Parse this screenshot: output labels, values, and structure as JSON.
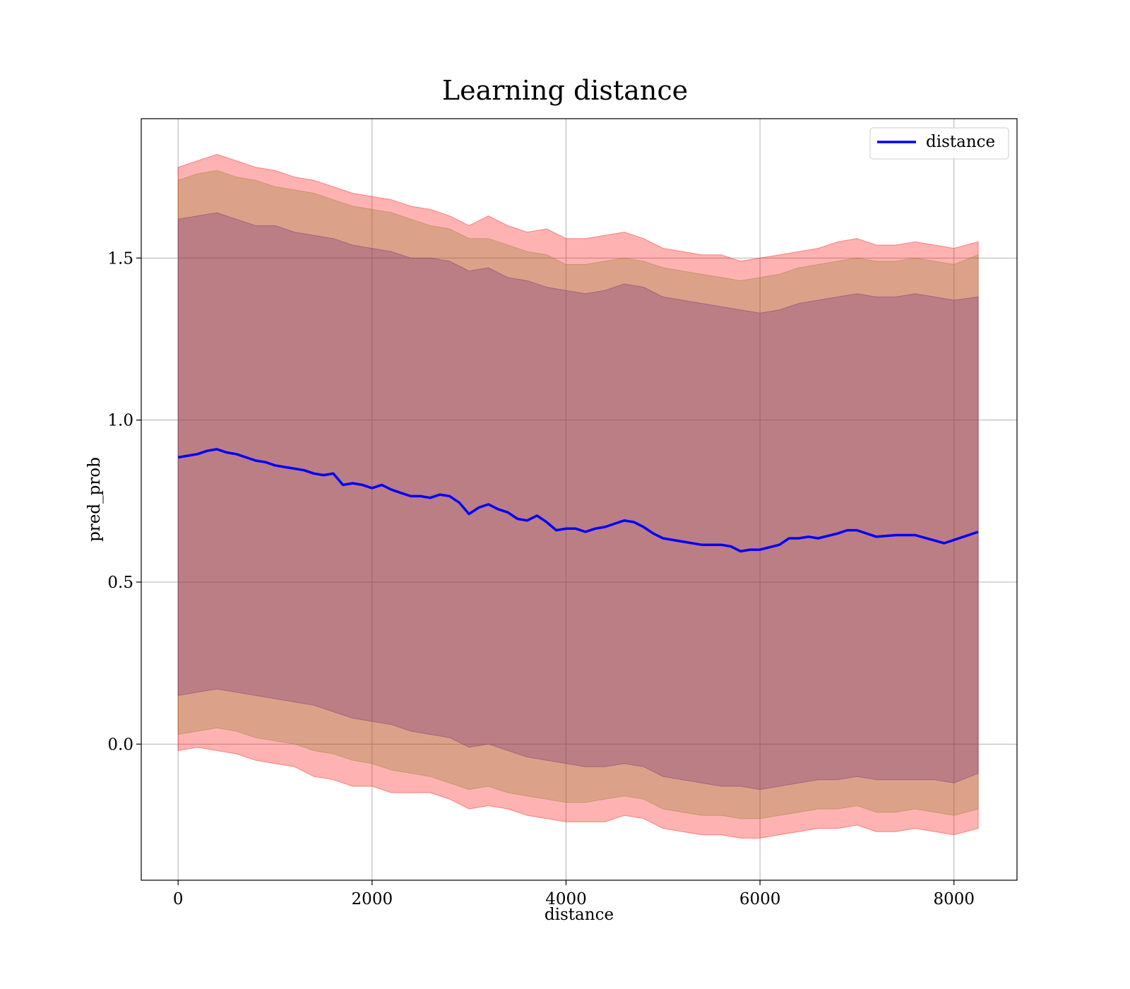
{
  "chart_data": {
    "type": "line",
    "title": "Learning distance",
    "xlabel": "distance",
    "ylabel": "pred_prob",
    "xlim": [
      -380,
      8650
    ],
    "ylim": [
      -0.42,
      1.93
    ],
    "xticks": [
      0,
      2000,
      4000,
      6000,
      8000
    ],
    "xtick_labels": [
      "0",
      "2000",
      "4000",
      "6000",
      "8000"
    ],
    "yticks": [
      0.0,
      0.5,
      1.0,
      1.5
    ],
    "ytick_labels": [
      "0.0",
      "0.5",
      "1.0",
      "1.5"
    ],
    "grid": true,
    "legend": {
      "placement": "top-right",
      "entries": [
        "distance"
      ]
    },
    "colors": {
      "line": "#0000ff",
      "outer_band": "#ff0000",
      "middle_band": "#8a7d2a",
      "inner_band": "#6f2a7a",
      "grid": "#b0b0b0"
    },
    "series": [
      {
        "name": "distance",
        "x": [
          0,
          100,
          200,
          300,
          400,
          500,
          600,
          700,
          800,
          900,
          1000,
          1100,
          1200,
          1300,
          1400,
          1500,
          1600,
          1700,
          1800,
          1900,
          2000,
          2100,
          2200,
          2300,
          2400,
          2500,
          2600,
          2700,
          2800,
          2900,
          3000,
          3100,
          3200,
          3300,
          3400,
          3500,
          3600,
          3700,
          3800,
          3900,
          4000,
          4100,
          4200,
          4300,
          4400,
          4500,
          4600,
          4700,
          4800,
          4900,
          5000,
          5200,
          5400,
          5600,
          5700,
          5800,
          5900,
          6000,
          6200,
          6300,
          6400,
          6500,
          6600,
          6800,
          6900,
          7000,
          7200,
          7400,
          7600,
          7900,
          8250
        ],
        "y": [
          0.885,
          0.89,
          0.895,
          0.905,
          0.91,
          0.9,
          0.895,
          0.885,
          0.875,
          0.87,
          0.86,
          0.855,
          0.85,
          0.845,
          0.835,
          0.83,
          0.835,
          0.8,
          0.805,
          0.8,
          0.79,
          0.8,
          0.785,
          0.775,
          0.765,
          0.765,
          0.76,
          0.77,
          0.765,
          0.745,
          0.71,
          0.73,
          0.74,
          0.725,
          0.715,
          0.695,
          0.69,
          0.705,
          0.685,
          0.66,
          0.665,
          0.665,
          0.655,
          0.665,
          0.67,
          0.68,
          0.69,
          0.685,
          0.67,
          0.65,
          0.635,
          0.625,
          0.615,
          0.615,
          0.61,
          0.595,
          0.6,
          0.6,
          0.615,
          0.635,
          0.635,
          0.64,
          0.635,
          0.65,
          0.66,
          0.66,
          0.64,
          0.645,
          0.645,
          0.62,
          0.655
        ]
      }
    ],
    "bands": [
      {
        "level": "outer",
        "x": [
          0,
          200,
          400,
          600,
          800,
          1000,
          1200,
          1400,
          1600,
          1800,
          2000,
          2200,
          2400,
          2600,
          2800,
          3000,
          3200,
          3400,
          3600,
          3800,
          4000,
          4200,
          4400,
          4600,
          4800,
          5000,
          5200,
          5400,
          5600,
          5800,
          6000,
          6200,
          6400,
          6600,
          6800,
          7000,
          7200,
          7400,
          7600,
          7800,
          8000,
          8250
        ],
        "upper": [
          1.78,
          1.8,
          1.82,
          1.8,
          1.78,
          1.77,
          1.75,
          1.74,
          1.72,
          1.7,
          1.69,
          1.68,
          1.66,
          1.65,
          1.63,
          1.6,
          1.63,
          1.6,
          1.58,
          1.59,
          1.56,
          1.56,
          1.57,
          1.58,
          1.56,
          1.53,
          1.52,
          1.51,
          1.51,
          1.49,
          1.5,
          1.51,
          1.52,
          1.53,
          1.55,
          1.56,
          1.54,
          1.54,
          1.55,
          1.54,
          1.53,
          1.55
        ],
        "lower": [
          -0.02,
          -0.01,
          -0.02,
          -0.03,
          -0.05,
          -0.06,
          -0.07,
          -0.1,
          -0.11,
          -0.13,
          -0.13,
          -0.15,
          -0.15,
          -0.15,
          -0.17,
          -0.2,
          -0.19,
          -0.2,
          -0.22,
          -0.23,
          -0.24,
          -0.24,
          -0.24,
          -0.22,
          -0.23,
          -0.26,
          -0.27,
          -0.28,
          -0.28,
          -0.29,
          -0.29,
          -0.28,
          -0.27,
          -0.26,
          -0.26,
          -0.25,
          -0.27,
          -0.27,
          -0.26,
          -0.27,
          -0.28,
          -0.26
        ]
      },
      {
        "level": "middle",
        "x": [
          0,
          200,
          400,
          600,
          800,
          1000,
          1200,
          1400,
          1600,
          1800,
          2000,
          2200,
          2400,
          2600,
          2800,
          3000,
          3200,
          3400,
          3600,
          3800,
          4000,
          4200,
          4400,
          4600,
          4800,
          5000,
          5200,
          5400,
          5600,
          5800,
          6000,
          6200,
          6400,
          6600,
          6800,
          7000,
          7200,
          7400,
          7600,
          7800,
          8000,
          8250
        ],
        "upper": [
          1.74,
          1.76,
          1.77,
          1.75,
          1.74,
          1.72,
          1.71,
          1.7,
          1.68,
          1.66,
          1.65,
          1.64,
          1.62,
          1.6,
          1.59,
          1.56,
          1.56,
          1.54,
          1.52,
          1.51,
          1.48,
          1.48,
          1.49,
          1.5,
          1.49,
          1.47,
          1.46,
          1.45,
          1.44,
          1.43,
          1.44,
          1.45,
          1.47,
          1.48,
          1.49,
          1.5,
          1.49,
          1.49,
          1.5,
          1.49,
          1.48,
          1.51
        ],
        "lower": [
          0.03,
          0.04,
          0.05,
          0.04,
          0.02,
          0.01,
          0.0,
          -0.02,
          -0.03,
          -0.05,
          -0.06,
          -0.08,
          -0.09,
          -0.1,
          -0.12,
          -0.14,
          -0.13,
          -0.15,
          -0.16,
          -0.17,
          -0.18,
          -0.18,
          -0.17,
          -0.16,
          -0.17,
          -0.2,
          -0.21,
          -0.22,
          -0.22,
          -0.23,
          -0.23,
          -0.22,
          -0.21,
          -0.2,
          -0.2,
          -0.19,
          -0.21,
          -0.21,
          -0.2,
          -0.21,
          -0.22,
          -0.2
        ]
      },
      {
        "level": "inner",
        "x": [
          0,
          200,
          400,
          600,
          800,
          1000,
          1200,
          1400,
          1600,
          1800,
          2000,
          2200,
          2400,
          2600,
          2800,
          3000,
          3200,
          3400,
          3600,
          3800,
          4000,
          4200,
          4400,
          4600,
          4800,
          5000,
          5200,
          5400,
          5600,
          5800,
          6000,
          6200,
          6400,
          6600,
          6800,
          7000,
          7200,
          7400,
          7600,
          7800,
          8000,
          8250
        ],
        "upper": [
          1.62,
          1.63,
          1.64,
          1.62,
          1.6,
          1.6,
          1.58,
          1.57,
          1.56,
          1.54,
          1.53,
          1.52,
          1.5,
          1.5,
          1.49,
          1.46,
          1.47,
          1.44,
          1.43,
          1.41,
          1.4,
          1.39,
          1.4,
          1.42,
          1.41,
          1.38,
          1.37,
          1.36,
          1.35,
          1.34,
          1.33,
          1.34,
          1.36,
          1.37,
          1.38,
          1.39,
          1.38,
          1.38,
          1.39,
          1.38,
          1.37,
          1.38
        ],
        "lower": [
          0.15,
          0.16,
          0.17,
          0.16,
          0.15,
          0.14,
          0.13,
          0.12,
          0.1,
          0.08,
          0.07,
          0.06,
          0.04,
          0.03,
          0.02,
          -0.01,
          0.0,
          -0.02,
          -0.04,
          -0.05,
          -0.06,
          -0.07,
          -0.07,
          -0.06,
          -0.07,
          -0.1,
          -0.11,
          -0.12,
          -0.13,
          -0.13,
          -0.14,
          -0.13,
          -0.12,
          -0.11,
          -0.11,
          -0.1,
          -0.11,
          -0.11,
          -0.11,
          -0.11,
          -0.12,
          -0.09
        ]
      }
    ]
  }
}
